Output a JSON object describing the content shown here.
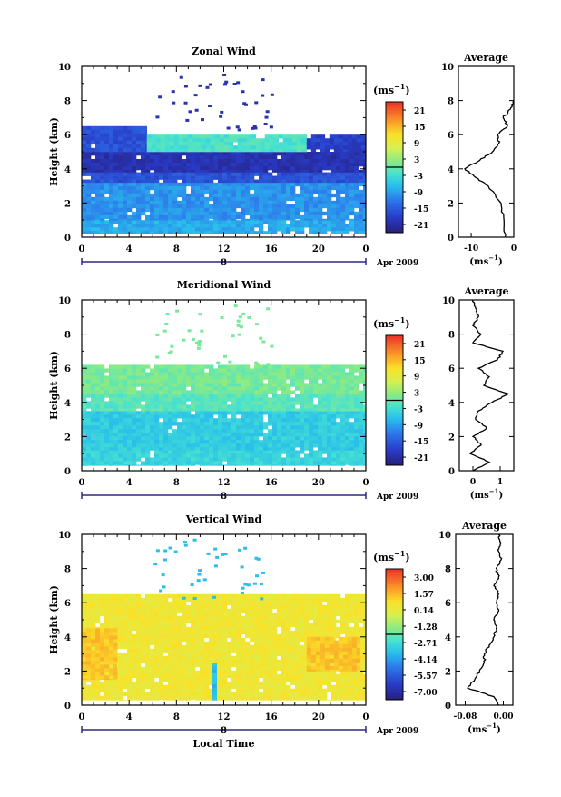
{
  "figure": {
    "xlabel": "Local Time",
    "ylabel": "Height (km)",
    "average_title": "Average",
    "unit_label": "(ms",
    "unit_exp": "−1",
    "date_label": "Apr 2009",
    "day_label": "8"
  },
  "chart_data": [
    {
      "type": "heatmap",
      "title": "Zonal Wind",
      "xlabel": "",
      "ylabel": "Height (km)",
      "x_ticks": [
        "0",
        "4",
        "8",
        "12",
        "16",
        "20",
        "0"
      ],
      "xlim": [
        0,
        24
      ],
      "ylim": [
        0,
        10
      ],
      "y_ticks": [
        "0",
        "2",
        "4",
        "6",
        "8",
        "10"
      ],
      "colorbar_ticks": [
        "21",
        "15",
        "9",
        "3",
        "-3",
        "-9",
        "-15",
        "-21"
      ],
      "colorbar_range": [
        -24,
        24
      ],
      "bands": [
        {
          "y0": 0.2,
          "y1": 1.0,
          "value": -8
        },
        {
          "y0": 1.0,
          "y1": 3.2,
          "value": -10
        },
        {
          "y0": 3.2,
          "y1": 3.8,
          "value": -16
        },
        {
          "y0": 3.8,
          "y1": 5.0,
          "value": -20
        },
        {
          "y0": 5.0,
          "y1": 6.5,
          "value": -16,
          "x0": 0,
          "x1": 5.5
        },
        {
          "y0": 5.0,
          "y1": 6.0,
          "value": -2,
          "x0": 5.5,
          "x1": 19
        },
        {
          "y0": 5.0,
          "y1": 6.0,
          "value": -18,
          "x0": 19,
          "x1": 24
        }
      ],
      "average": {
        "xlim": [
          -13,
          0
        ],
        "x_ticks": [
          "-10",
          "0"
        ],
        "heights": [
          0.0,
          1.0,
          2.0,
          3.0,
          3.5,
          4.0,
          4.5,
          5.0,
          5.5,
          6.0,
          6.5,
          7.0,
          7.5,
          8.0
        ],
        "values": [
          -2.0,
          -2.3,
          -3.0,
          -6.0,
          -9.0,
          -11.5,
          -8.0,
          -5.0,
          -3.5,
          -3.8,
          -1.5,
          -2.5,
          -0.8,
          0.0
        ]
      }
    },
    {
      "type": "heatmap",
      "title": "Meridional Wind",
      "xlabel": "",
      "ylabel": "Height (km)",
      "x_ticks": [
        "0",
        "4",
        "8",
        "12",
        "16",
        "20",
        "0"
      ],
      "xlim": [
        0,
        24
      ],
      "ylim": [
        0,
        10
      ],
      "y_ticks": [
        "0",
        "2",
        "4",
        "6",
        "8",
        "10"
      ],
      "colorbar_ticks": [
        "21",
        "15",
        "9",
        "3",
        "-3",
        "-9",
        "-15",
        "-21"
      ],
      "colorbar_range": [
        -24,
        24
      ],
      "bands": [
        {
          "y0": 0.3,
          "y1": 1.2,
          "value": -4
        },
        {
          "y0": 1.2,
          "y1": 3.5,
          "value": -5
        },
        {
          "y0": 3.5,
          "y1": 4.5,
          "value": -1
        },
        {
          "y0": 4.5,
          "y1": 6.2,
          "value": 1
        }
      ],
      "average": {
        "xlim": [
          -0.5,
          1.5
        ],
        "x_ticks": [
          "0",
          "1"
        ],
        "heights": [
          0.0,
          0.5,
          1.0,
          1.5,
          2.0,
          2.5,
          3.0,
          3.5,
          4.0,
          4.5,
          5.0,
          5.5,
          6.0,
          6.5,
          7.0,
          7.5,
          8.0,
          8.5,
          9.0,
          9.5,
          10.0
        ],
        "values": [
          0.0,
          0.6,
          -0.1,
          0.3,
          0.0,
          0.5,
          0.1,
          0.2,
          0.7,
          1.3,
          0.4,
          0.6,
          0.2,
          0.9,
          1.1,
          0.0,
          0.3,
          0.0,
          0.2,
          0.1,
          0.0
        ]
      }
    },
    {
      "type": "heatmap",
      "title": "Vertical Wind",
      "xlabel": "Local Time",
      "ylabel": "Height (km)",
      "x_ticks": [
        "0",
        "4",
        "8",
        "12",
        "16",
        "20",
        "0"
      ],
      "xlim": [
        0,
        24
      ],
      "ylim": [
        0,
        10
      ],
      "y_ticks": [
        "0",
        "2",
        "4",
        "6",
        "8",
        "10"
      ],
      "colorbar_ticks": [
        "3.00",
        "1.57",
        "0.14",
        "-1.28",
        "-2.71",
        "-4.14",
        "-5.57",
        "-7.00"
      ],
      "colorbar_range": [
        -7.5,
        3.5
      ],
      "bands": [
        {
          "y0": 0.3,
          "y1": 6.5,
          "value": 0.4
        },
        {
          "y0": 1.5,
          "y1": 4.5,
          "value": 1.2,
          "x0": 0,
          "x1": 3
        },
        {
          "y0": 2.0,
          "y1": 4.0,
          "value": 1.2,
          "x0": 19,
          "x1": 23.5
        },
        {
          "y0": 0.3,
          "y1": 2.5,
          "value": -3.5,
          "x0": 11,
          "x1": 11.4
        }
      ],
      "average": {
        "xlim": [
          -0.1,
          0.02
        ],
        "x_ticks": [
          "-0.08",
          "0.00"
        ],
        "heights": [
          0.0,
          0.5,
          1.0,
          1.5,
          2.0,
          2.5,
          3.0,
          3.5,
          4.0,
          4.5,
          5.0,
          5.5,
          6.0,
          6.5,
          7.0,
          7.5,
          8.0,
          8.5,
          9.0,
          9.5,
          10.0
        ],
        "values": [
          -0.01,
          -0.02,
          -0.075,
          -0.06,
          -0.05,
          -0.04,
          -0.04,
          -0.03,
          -0.02,
          -0.015,
          -0.02,
          -0.01,
          -0.015,
          -0.01,
          -0.02,
          -0.01,
          -0.015,
          -0.005,
          -0.01,
          -0.005,
          -0.01
        ]
      }
    }
  ]
}
